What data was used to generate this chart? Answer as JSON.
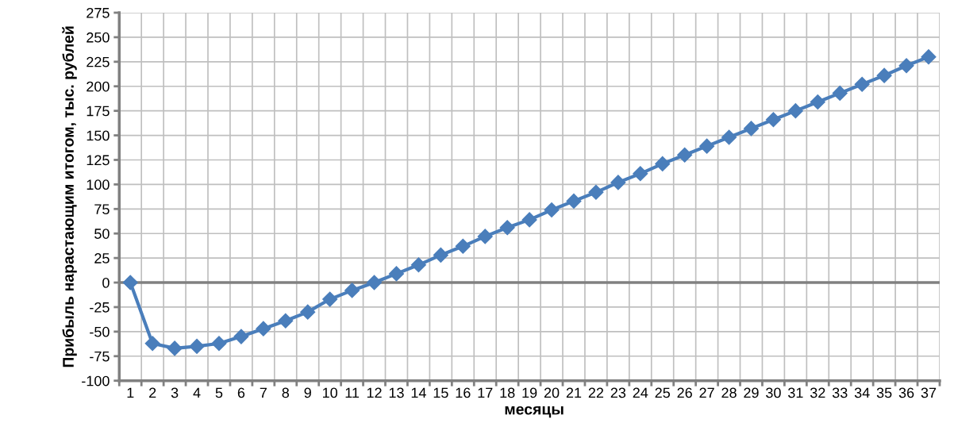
{
  "chart_data": {
    "type": "line",
    "xlabel": "месяцы",
    "ylabel": "Прибыль нарастающим итогом, тыс. рублей",
    "categories": [
      "1",
      "2",
      "3",
      "4",
      "5",
      "6",
      "7",
      "8",
      "9",
      "10",
      "11",
      "12",
      "13",
      "14",
      "15",
      "16",
      "17",
      "18",
      "19",
      "20",
      "21",
      "22",
      "23",
      "24",
      "25",
      "26",
      "27",
      "28",
      "29",
      "30",
      "31",
      "32",
      "33",
      "34",
      "35",
      "36",
      "37"
    ],
    "series": [
      {
        "color": "#4a7ebb",
        "values": [
          0,
          -62,
          -67,
          -65,
          -62,
          -55,
          -47,
          -39,
          -30,
          -17,
          -8,
          0,
          9,
          18,
          28,
          37,
          47,
          56,
          64,
          74,
          83,
          92,
          102,
          111,
          121,
          130,
          139,
          148,
          157,
          166,
          175,
          184,
          193,
          202,
          211,
          221,
          230
        ]
      }
    ],
    "ylim": [
      -100,
      275
    ],
    "yticks": [
      -100,
      -75,
      -50,
      -25,
      0,
      25,
      50,
      75,
      100,
      125,
      150,
      175,
      200,
      225,
      250,
      275
    ],
    "ref_lines": [
      {
        "axis": "y",
        "value": 0,
        "color": "#808080"
      }
    ],
    "grid": true,
    "marker": "diamond",
    "line_style": "solid",
    "legend": false
  }
}
